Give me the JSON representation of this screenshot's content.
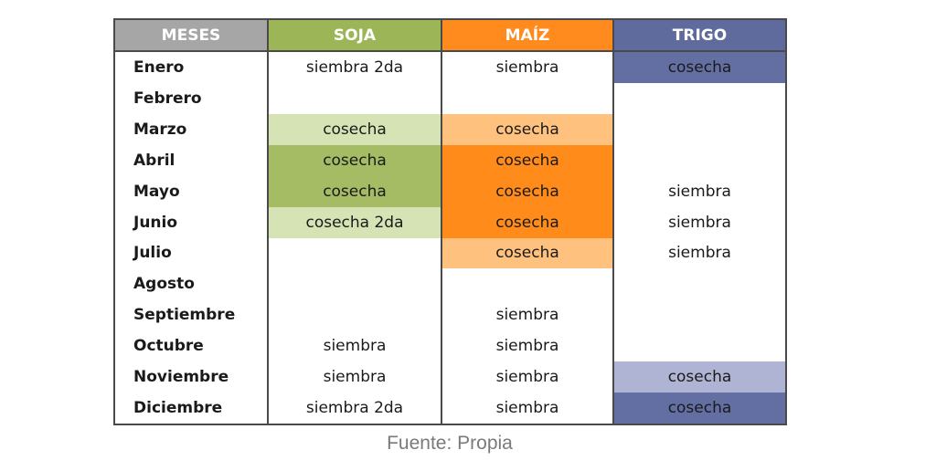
{
  "headers": {
    "meses": "MESES",
    "soja": "SOJA",
    "maiz": "MAÍZ",
    "trigo": "TRIGO"
  },
  "colors": {
    "header_meses": "#a6a6a6",
    "header_soja": "#9bb557",
    "header_maiz": "#ff8a1e",
    "header_trigo": "#5f6b9c",
    "soja_light": "#d6e3b4",
    "soja_dark": "#a5bb64",
    "maiz_light": "#ffc27e",
    "maiz_dark": "#ff8c1a",
    "trigo_dark": "#636fa3",
    "trigo_light": "#b0b4d4"
  },
  "rows": [
    {
      "month": "Enero",
      "soja": "siembra 2da",
      "maiz": "siembra",
      "trigo": "cosecha"
    },
    {
      "month": "Febrero",
      "soja": "",
      "maiz": "",
      "trigo": ""
    },
    {
      "month": "Marzo",
      "soja": "cosecha",
      "maiz": "cosecha",
      "trigo": ""
    },
    {
      "month": "Abril",
      "soja": "cosecha",
      "maiz": "cosecha",
      "trigo": ""
    },
    {
      "month": "Mayo",
      "soja": "cosecha",
      "maiz": "cosecha",
      "trigo": "siembra"
    },
    {
      "month": "Junio",
      "soja": "cosecha 2da",
      "maiz": "cosecha",
      "trigo": "siembra"
    },
    {
      "month": "Julio",
      "soja": "",
      "maiz": "cosecha",
      "trigo": "siembra"
    },
    {
      "month": "Agosto",
      "soja": "",
      "maiz": "",
      "trigo": ""
    },
    {
      "month": "Septiembre",
      "soja": "",
      "maiz": "siembra",
      "trigo": ""
    },
    {
      "month": "Octubre",
      "soja": "siembra",
      "maiz": "siembra",
      "trigo": ""
    },
    {
      "month": "Noviembre",
      "soja": "siembra",
      "maiz": "siembra",
      "trigo": "cosecha"
    },
    {
      "month": "Diciembre",
      "soja": "siembra 2da",
      "maiz": "siembra",
      "trigo": "cosecha"
    }
  ],
  "caption": "Fuente: Propia"
}
